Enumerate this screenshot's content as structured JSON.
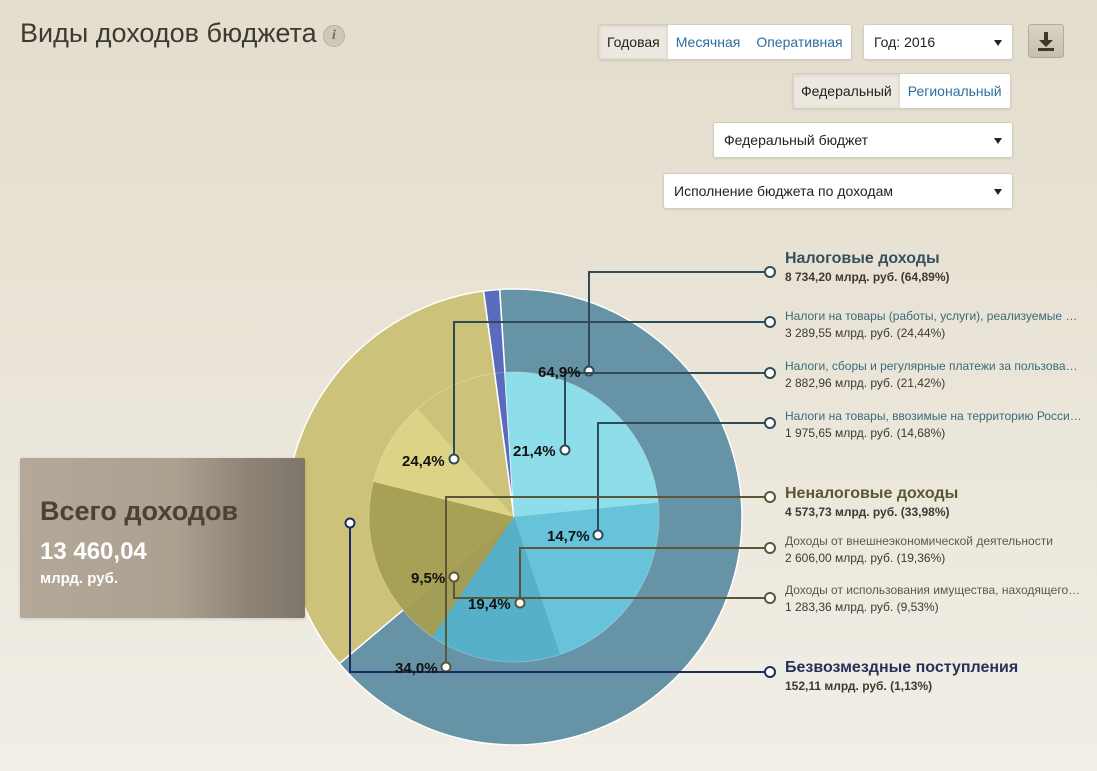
{
  "page": {
    "title": "Виды доходов бюджета"
  },
  "controls": {
    "period_tabs": [
      "Годовая",
      "Месячная",
      "Оперативная"
    ],
    "period_active": 0,
    "year_select": "Год: 2016",
    "level_tabs": [
      "Федеральный",
      "Региональный"
    ],
    "level_active": 0,
    "budget_select": "Федеральный бюджет",
    "report_select": "Исполнение бюджета по доходам"
  },
  "total": {
    "label": "Всего доходов",
    "value": "13 460,04",
    "unit": "млрд. руб."
  },
  "colors": {
    "tax": "#6693a6",
    "tax_sub": [
      "#8fe0ec",
      "#67c5dc",
      "#55b1cb"
    ],
    "nontax": "#cdc27a",
    "nontax_sub": [
      "#a59e53",
      "#ddd386"
    ],
    "gratuitous": "#5a6bbd",
    "line_tax": "#2f4b57",
    "line_nontax": "#5b5635",
    "line_gratuitous": "#1e2a63"
  },
  "chart_data": {
    "type": "pie",
    "outer": [
      {
        "name": "Налоговые доходы",
        "value": 64.89,
        "label": "64,9%"
      },
      {
        "name": "Неналоговые доходы",
        "value": 33.98,
        "label": "34,0%"
      },
      {
        "name": "Безвозмездные поступления",
        "value": 1.13
      }
    ],
    "inner": [
      {
        "parent": 0,
        "value": 24.44,
        "label": "24,4%"
      },
      {
        "parent": 0,
        "value": 21.42,
        "label": "21,4%"
      },
      {
        "parent": 0,
        "value": 14.68,
        "label": "14,7%"
      },
      {
        "parent": 1,
        "value": 19.36,
        "label": "19,4%"
      },
      {
        "parent": 1,
        "value": 9.53,
        "label": "9,5%"
      }
    ]
  },
  "legend": {
    "groups": [
      {
        "title": "Налоговые доходы",
        "subtitle": "8 734,20 млрд. руб. (64,89%)",
        "items": [
          {
            "name": "Налоги на товары (работы, услуги), реализуемые на территории Российской Федерации",
            "value": "3 289,55 млрд. руб. (24,44%)"
          },
          {
            "name": "Налоги, сборы и регулярные платежи за пользование природными ресурсами",
            "value": "2 882,96 млрд. руб. (21,42%)"
          },
          {
            "name": "Налоги на товары, ввозимые на территорию Российской Федерации",
            "value": "1 975,65 млрд. руб. (14,68%)"
          }
        ]
      },
      {
        "title": "Неналоговые доходы",
        "subtitle": "4 573,73 млрд. руб. (33,98%)",
        "items": [
          {
            "name": "Доходы от внешнеэкономической деятельности",
            "value": "2 606,00 млрд. руб. (19,36%)"
          },
          {
            "name": "Доходы от использования имущества, находящегося в государственной и муниципальной собственности",
            "value": "1 283,36 млрд. руб. (9,53%)"
          }
        ]
      },
      {
        "title": "Безвозмездные поступления",
        "subtitle": "152,11 млрд. руб. (1,13%)",
        "items": []
      }
    ]
  }
}
